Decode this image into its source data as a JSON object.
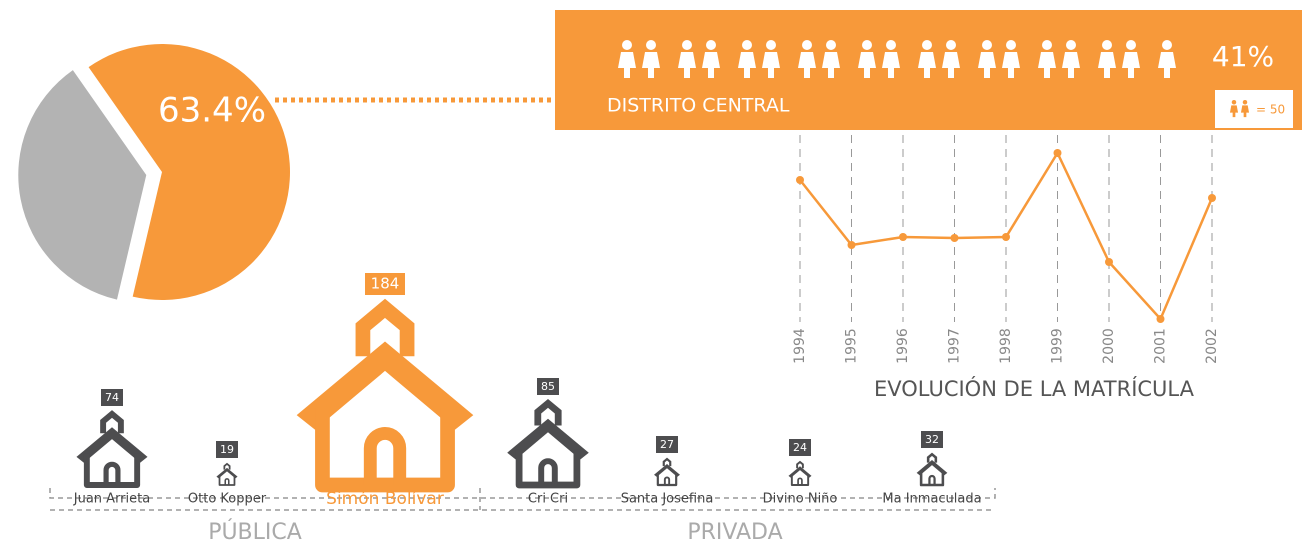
{
  "chart_data": [
    {
      "type": "pie",
      "values": [
        63.4,
        36.6
      ],
      "value_labels": [
        "63.4%",
        null
      ],
      "colors": [
        "#f7993a",
        "#b3b3b3"
      ]
    },
    {
      "type": "banner",
      "label": "DISTRITO CENTRAL",
      "icons": 19,
      "value": 41,
      "value_label": "41%",
      "icon_unit": {
        "value": 50,
        "label": "= 50"
      },
      "color": "#f7993a"
    },
    {
      "type": "line",
      "title": "EVOLUCIÓN DE LA MATRÍCULA",
      "categories": [
        "1994",
        "1995",
        "1996",
        "1997",
        "1998",
        "1999",
        "2000",
        "2001",
        "2002"
      ],
      "values": [
        150,
        85,
        93,
        92,
        93,
        177,
        68,
        11,
        132
      ],
      "color": "#f7993a"
    },
    {
      "type": "pictograph",
      "groups": [
        {
          "label": "PÚBLICA",
          "categories": [
            "Juan Arrieta",
            "Otto Kopper",
            "Simón Bolívar"
          ],
          "values": [
            74,
            19,
            184
          ],
          "colors": [
            "#4d4d4f",
            "#4d4d4f",
            "#f7993a"
          ]
        },
        {
          "label": "PRIVADA",
          "categories": [
            "Cri Cri",
            "Santa Josefina",
            "Divino Niño",
            "Ma Inmaculada"
          ],
          "values": [
            85,
            27,
            24,
            32
          ],
          "colors": [
            "#4d4d4f",
            "#4d4d4f",
            "#4d4d4f",
            "#4d4d4f"
          ]
        }
      ]
    }
  ]
}
